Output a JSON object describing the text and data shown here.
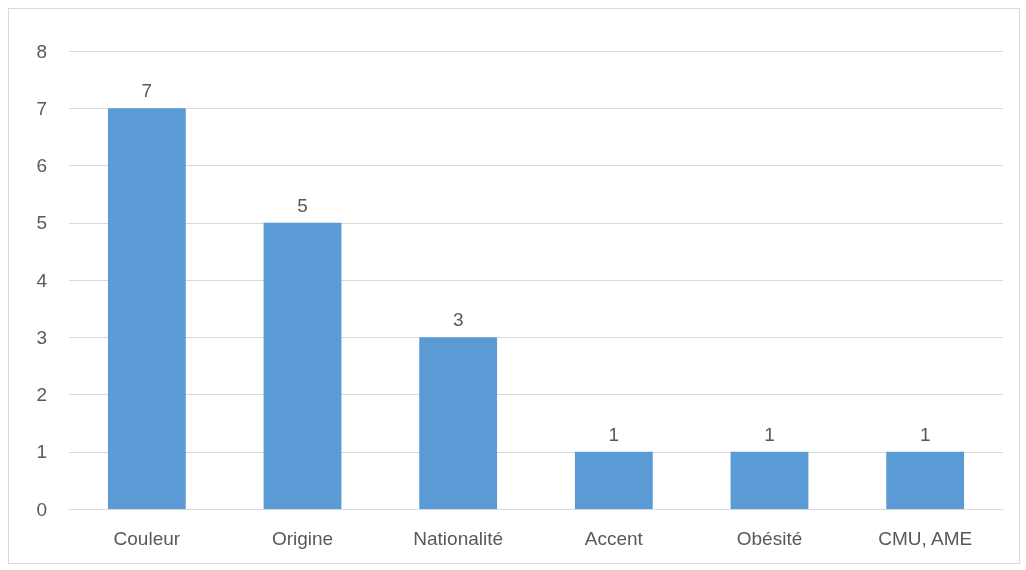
{
  "chart_data": {
    "type": "bar",
    "categories": [
      "Couleur",
      "Origine",
      "Nationalité",
      "Accent",
      "Obésité",
      "CMU, AME"
    ],
    "values": [
      7,
      5,
      3,
      1,
      1,
      1
    ],
    "color": "#5b9bd5",
    "ylim": [
      0,
      8
    ],
    "yticks": [
      0,
      1,
      2,
      3,
      4,
      5,
      6,
      7,
      8
    ],
    "grid": "y",
    "data_labels": true
  }
}
